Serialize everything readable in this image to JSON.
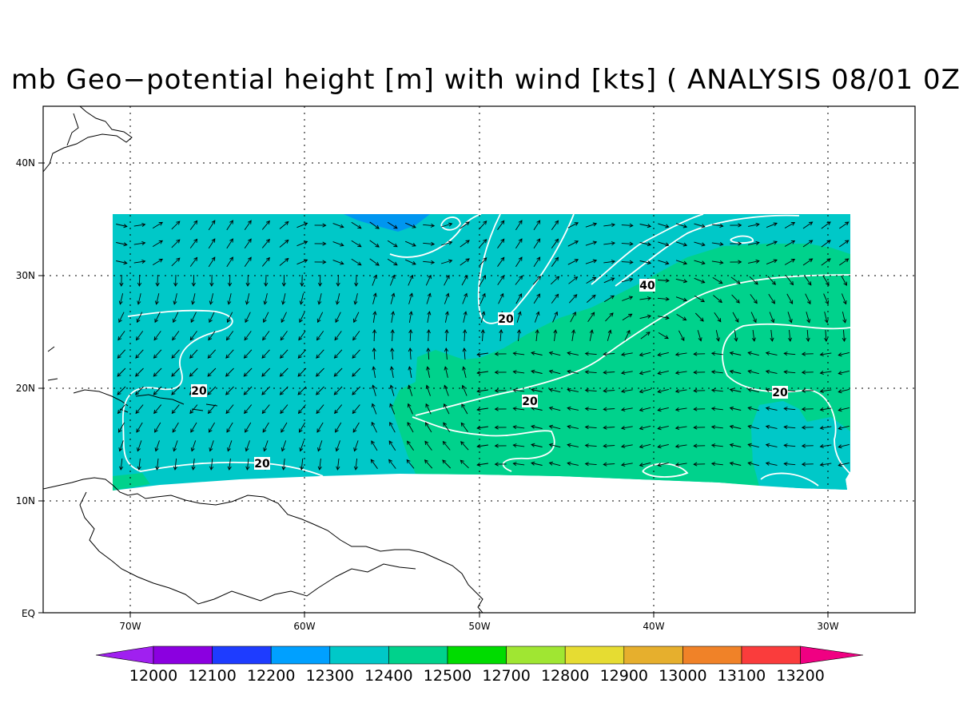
{
  "title": "mb Geo−potential height [m] with wind [kts] ( ANALYSIS 08/01 0Z",
  "axes": {
    "x_ticks": [
      "70W",
      "60W",
      "50W",
      "40W",
      "30W"
    ],
    "y_ticks": [
      "40N",
      "30N",
      "20N",
      "10N",
      "EQ"
    ],
    "x_range_lon": [
      -75,
      -25
    ],
    "y_range_lat": [
      0,
      45
    ],
    "grid": "dotted"
  },
  "contour_labels": [
    "20",
    "20",
    "40",
    "20",
    "20",
    "20"
  ],
  "colorbar": {
    "labels": [
      "12000",
      "12100",
      "12200",
      "12300",
      "12400",
      "12500",
      "12700",
      "12800",
      "12900",
      "13000",
      "13100",
      "13200"
    ],
    "colors": [
      "#a020f0",
      "#8b00e0",
      "#1e3cff",
      "#00a0ff",
      "#00c8c8",
      "#00d28c",
      "#00dc00",
      "#a0e632",
      "#e6dc32",
      "#e6af2d",
      "#f08228",
      "#fa3c3c",
      "#f00082"
    ]
  }
}
